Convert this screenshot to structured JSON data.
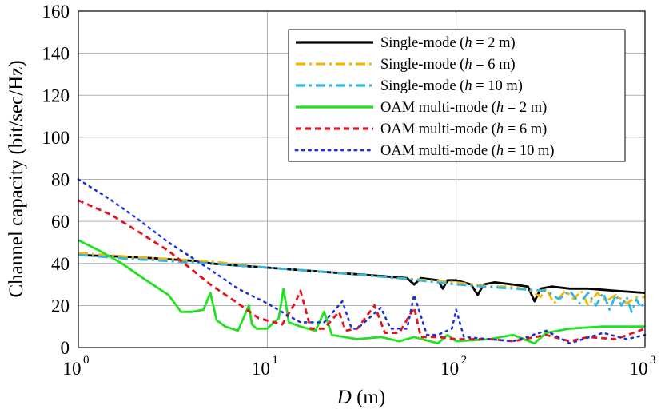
{
  "chart_data": {
    "type": "line",
    "title": "",
    "xlabel": {
      "var": "D",
      "unit": " (m)"
    },
    "ylabel": "Channel capacity (bit/sec/Hz)",
    "xscale": "log",
    "xlim": [
      1,
      1000
    ],
    "ylim": [
      0,
      160
    ],
    "grid": true,
    "legend_position": "top-right",
    "x_ticks": [
      {
        "base": "10",
        "exp": "0",
        "value": 1
      },
      {
        "base": "10",
        "exp": "1",
        "value": 10
      },
      {
        "base": "10",
        "exp": "2",
        "value": 100
      },
      {
        "base": "10",
        "exp": "3",
        "value": 1000
      }
    ],
    "y_ticks": [
      "0",
      "20",
      "40",
      "60",
      "80",
      "100",
      "120",
      "140",
      "160"
    ],
    "series": [
      {
        "name": "Single-mode (h = 2 m)",
        "label_prefix": "Single-mode (",
        "label_var": "h",
        "label_suffix": " = 2 m)",
        "color": "#000000",
        "style": "solid",
        "x": [
          1,
          2,
          4.5,
          5,
          10,
          20,
          40,
          55,
          60,
          65,
          80,
          85,
          90,
          100,
          120,
          130,
          140,
          160,
          200,
          240,
          260,
          280,
          320,
          400,
          500,
          700,
          1000
        ],
        "y": [
          44,
          43,
          41,
          40,
          38,
          36,
          34,
          33,
          30,
          33,
          32,
          28,
          32,
          32,
          30,
          25,
          30,
          31,
          30,
          29,
          22,
          28,
          29,
          28,
          28,
          27,
          26
        ]
      },
      {
        "name": "Single-mode (h = 6 m)",
        "label_prefix": "Single-mode (",
        "label_var": "h",
        "label_suffix": " = 6 m)",
        "color": "#f5b800",
        "style": "dashdot",
        "x": [
          1,
          2,
          5,
          10,
          20,
          50,
          100,
          150,
          200,
          250,
          280,
          300,
          330,
          380,
          420,
          460,
          500,
          560,
          620,
          700,
          800,
          900,
          1000
        ],
        "y": [
          45,
          43,
          41,
          38,
          36,
          33,
          31,
          29,
          29,
          27,
          24,
          28,
          21,
          27,
          23,
          27,
          20,
          26,
          22,
          25,
          21,
          24,
          24
        ]
      },
      {
        "name": "Single-mode (h = 10 m)",
        "label_prefix": "Single-mode (",
        "label_var": "h",
        "label_suffix": " = 10 m)",
        "color": "#33b5e5",
        "style": "dashdot",
        "x": [
          1,
          2,
          5,
          10,
          20,
          50,
          100,
          200,
          300,
          350,
          400,
          450,
          500,
          550,
          600,
          650,
          700,
          750,
          800,
          850,
          900,
          950,
          1000
        ],
        "y": [
          44,
          42,
          40,
          38,
          36,
          33,
          30,
          28,
          27,
          23,
          27,
          21,
          26,
          20,
          26,
          18,
          25,
          20,
          24,
          17,
          23,
          19,
          22
        ]
      },
      {
        "name": "OAM multi-mode (h = 2 m)",
        "label_prefix": "OAM multi-mode (",
        "label_var": "h",
        "label_suffix": " = 2 m)",
        "color": "#22e022",
        "style": "solid",
        "x": [
          1,
          1.3,
          1.7,
          2.2,
          3,
          3.5,
          4,
          4.6,
          5,
          5.4,
          6,
          7,
          8,
          8.3,
          8.8,
          10,
          11.5,
          12.2,
          13,
          15,
          18,
          20,
          22,
          30,
          40,
          50,
          60,
          80,
          90,
          100,
          150,
          200,
          260,
          300,
          400,
          600,
          800,
          1000
        ],
        "y": [
          51,
          46,
          40,
          33,
          25,
          17,
          17,
          18,
          26,
          13,
          10,
          8,
          20,
          11,
          9,
          9,
          14,
          28,
          12,
          10,
          8,
          17,
          6,
          4,
          5,
          3,
          5,
          2,
          6,
          3,
          4,
          6,
          2,
          7,
          9,
          10,
          10,
          10
        ]
      },
      {
        "name": "OAM multi-mode (h = 6 m)",
        "label_prefix": "OAM multi-mode (",
        "label_var": "h",
        "label_suffix": " = 6 m)",
        "color": "#e8101a",
        "style": "dashed",
        "x": [
          1,
          1.5,
          2,
          3,
          4,
          5,
          7,
          9,
          12,
          14,
          15,
          17,
          20,
          24,
          26,
          30,
          37,
          42,
          50,
          60,
          65,
          80,
          100,
          150,
          200,
          300,
          400,
          500,
          700,
          1000
        ],
        "y": [
          70,
          63,
          56,
          46,
          37,
          30,
          21,
          14,
          11,
          21,
          27,
          9,
          9,
          17,
          8,
          9,
          20,
          7,
          7,
          19,
          5,
          5,
          4,
          4,
          3,
          6,
          3,
          5,
          4,
          9
        ]
      },
      {
        "name": "OAM multi-mode (h = 10 m)",
        "label_prefix": "OAM multi-mode (",
        "label_var": "h",
        "label_suffix": " = 10 m)",
        "color": "#1f32d6",
        "style": "dotted",
        "x": [
          1,
          1.5,
          2,
          3,
          5,
          7,
          10,
          13,
          15,
          20,
          25,
          28,
          30,
          40,
          45,
          55,
          60,
          70,
          80,
          95,
          100,
          110,
          150,
          200,
          300,
          400,
          600,
          800,
          1000
        ],
        "y": [
          80,
          70,
          62,
          50,
          37,
          28,
          21,
          15,
          12,
          12,
          22,
          9,
          9,
          19,
          9,
          9,
          25,
          6,
          6,
          9,
          18,
          5,
          4,
          3,
          8,
          2,
          7,
          4,
          6
        ]
      }
    ]
  }
}
